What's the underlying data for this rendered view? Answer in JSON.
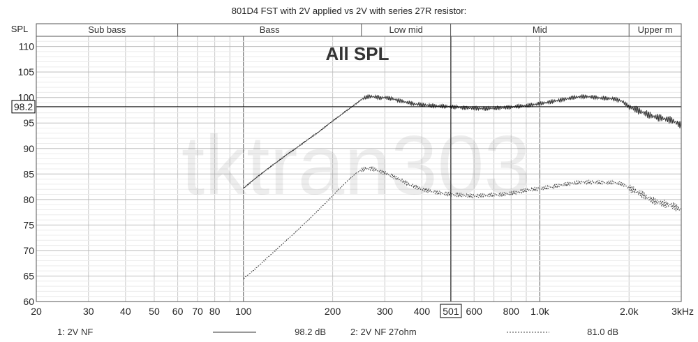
{
  "chart_data": {
    "type": "line",
    "title": "801D4 FST with 2V applied vs 2V with series 27R resistor:",
    "ylabel": "SPL",
    "xlim": [
      20,
      3000
    ],
    "ylim": [
      60,
      112
    ],
    "xscale": "log",
    "grid": true,
    "annotation": "All SPL",
    "watermark": "tktran303",
    "bands": [
      {
        "label": "Sub bass",
        "from": 20,
        "to": 60
      },
      {
        "label": "Bass",
        "from": 60,
        "to": 250
      },
      {
        "label": "Low mid",
        "from": 250,
        "to": 500
      },
      {
        "label": "Mid",
        "from": 500,
        "to": 2000
      },
      {
        "label": "Upper m",
        "from": 2000,
        "to": 3000
      }
    ],
    "x_ticks": [
      {
        "value": 20,
        "label": "20"
      },
      {
        "value": 30,
        "label": "30"
      },
      {
        "value": 40,
        "label": "40"
      },
      {
        "value": 50,
        "label": "50"
      },
      {
        "value": 60,
        "label": "60"
      },
      {
        "value": 70,
        "label": "70"
      },
      {
        "value": 80,
        "label": "80"
      },
      {
        "value": 100,
        "label": "100"
      },
      {
        "value": 200,
        "label": "200"
      },
      {
        "value": 300,
        "label": "300"
      },
      {
        "value": 400,
        "label": "400"
      },
      {
        "value": 600,
        "label": "600"
      },
      {
        "value": 800,
        "label": "800"
      },
      {
        "value": 1000,
        "label": "1.0k"
      },
      {
        "value": 2000,
        "label": "2.0k"
      },
      {
        "value": 3000,
        "label": "3kHz"
      }
    ],
    "y_ticks": [
      60,
      65,
      70,
      75,
      80,
      85,
      90,
      95,
      100,
      105,
      110
    ],
    "cursor": {
      "x": 501,
      "x_label": "501",
      "y": 98.2,
      "y_label": "98.2"
    },
    "series": [
      {
        "name": "1: 2V NF",
        "cursor_value": "98.2 dB",
        "style": "solid",
        "color": "#333333",
        "x": [
          100,
          110,
          120,
          130,
          140,
          150,
          160,
          170,
          180,
          190,
          200,
          210,
          220,
          230,
          240,
          250,
          260,
          270,
          280,
          290,
          300,
          320,
          340,
          360,
          380,
          400,
          430,
          460,
          500,
          550,
          600,
          650,
          700,
          750,
          800,
          850,
          900,
          950,
          1000,
          1100,
          1200,
          1300,
          1400,
          1500,
          1600,
          1700,
          1800,
          1900,
          2000,
          2200,
          2400,
          2600,
          2800,
          3000
        ],
        "y": [
          82.2,
          84.2,
          85.9,
          87.4,
          88.8,
          90.0,
          91.2,
          92.3,
          93.3,
          94.4,
          95.4,
          96.3,
          97.2,
          98.0,
          98.8,
          99.6,
          100.1,
          100.2,
          100.1,
          99.9,
          100.0,
          99.7,
          99.3,
          99.0,
          98.7,
          98.6,
          98.4,
          98.3,
          98.2,
          98.0,
          97.9,
          97.8,
          97.9,
          98.0,
          98.1,
          98.3,
          98.4,
          98.6,
          98.8,
          99.2,
          99.6,
          100.0,
          100.2,
          100.1,
          99.9,
          99.8,
          99.7,
          99.2,
          98.2,
          97.2,
          96.3,
          95.9,
          95.5,
          94.5
        ]
      },
      {
        "name": "2: 2V NF 27ohm",
        "cursor_value": "81.0 dB",
        "style": "dotted",
        "color": "#444444",
        "x": [
          100,
          110,
          120,
          130,
          140,
          150,
          160,
          170,
          180,
          190,
          200,
          210,
          220,
          230,
          240,
          250,
          260,
          270,
          280,
          290,
          300,
          320,
          340,
          360,
          380,
          400,
          430,
          460,
          500,
          550,
          600,
          650,
          700,
          750,
          800,
          850,
          900,
          950,
          1000,
          1100,
          1200,
          1300,
          1400,
          1500,
          1600,
          1700,
          1800,
          1900,
          2000,
          2200,
          2400,
          2600,
          2800,
          3000
        ],
        "y": [
          64.5,
          66.5,
          68.5,
          70.3,
          72.0,
          73.6,
          75.2,
          76.7,
          78.1,
          79.4,
          80.7,
          82.0,
          83.2,
          84.3,
          85.2,
          85.8,
          86.1,
          86.1,
          85.8,
          85.5,
          85.2,
          84.5,
          83.8,
          83.0,
          82.5,
          82.0,
          81.6,
          81.3,
          81.0,
          80.8,
          80.7,
          80.8,
          80.9,
          81.0,
          81.2,
          81.5,
          81.8,
          82.0,
          82.1,
          82.5,
          82.9,
          83.2,
          83.4,
          83.4,
          83.3,
          83.3,
          83.3,
          83.0,
          82.3,
          81.1,
          79.8,
          79.2,
          78.8,
          78.0
        ]
      }
    ]
  }
}
